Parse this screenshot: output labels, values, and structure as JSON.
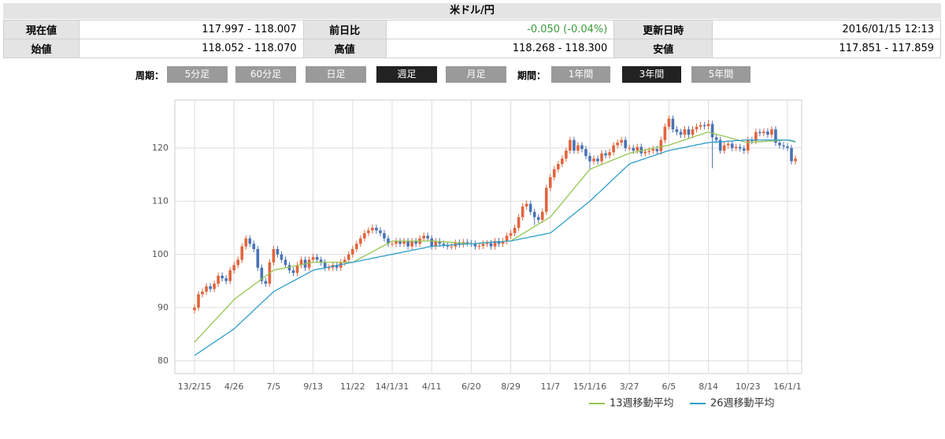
{
  "header": {
    "title": "米ドル/円"
  },
  "table": {
    "rows": [
      [
        "現在値",
        "117.997 - 118.007",
        "前日比",
        "-0.050 (-0.04%)",
        "更新日時",
        "2016/01/15 12:13"
      ],
      [
        "始値",
        "118.052 - 118.070",
        "高値",
        "118.268 - 118.300",
        "安値",
        "117.851 - 117.859"
      ]
    ]
  },
  "controls": {
    "period_label": "周期：",
    "periods": [
      {
        "label": "5分足",
        "active": false
      },
      {
        "label": "60分足",
        "active": false
      },
      {
        "label": "日足",
        "active": false
      },
      {
        "label": "週足",
        "active": true
      },
      {
        "label": "月足",
        "active": false
      }
    ],
    "term_label": "期間：",
    "terms": [
      {
        "label": "1年間",
        "active": false
      },
      {
        "label": "3年間",
        "active": true
      },
      {
        "label": "5年間",
        "active": false
      }
    ]
  },
  "chart_data": {
    "type": "candlestick",
    "up_color": "#e2643c",
    "down_color": "#4a72b4",
    "grid": true,
    "legend": "bottom-right",
    "ylim": [
      77.6,
      129
    ],
    "yticks": [
      80,
      90,
      100,
      110,
      120
    ],
    "categories": [
      "13/2/15",
      null,
      null,
      null,
      null,
      null,
      null,
      null,
      null,
      null,
      "4/26",
      null,
      null,
      null,
      null,
      null,
      null,
      null,
      null,
      null,
      "7/5",
      null,
      null,
      null,
      null,
      null,
      null,
      null,
      null,
      null,
      "9/13",
      null,
      null,
      null,
      null,
      null,
      null,
      null,
      null,
      null,
      "11/22",
      null,
      null,
      null,
      null,
      null,
      null,
      null,
      null,
      null,
      "14/1/31",
      null,
      null,
      null,
      null,
      null,
      null,
      null,
      null,
      null,
      "4/11",
      null,
      null,
      null,
      null,
      null,
      null,
      null,
      null,
      null,
      "6/20",
      null,
      null,
      null,
      null,
      null,
      null,
      null,
      null,
      null,
      "8/29",
      null,
      null,
      null,
      null,
      null,
      null,
      null,
      null,
      null,
      "11/7",
      null,
      null,
      null,
      null,
      null,
      null,
      null,
      null,
      null,
      "15/1/16",
      null,
      null,
      null,
      null,
      null,
      null,
      null,
      null,
      null,
      "3/27",
      null,
      null,
      null,
      null,
      null,
      null,
      null,
      null,
      null,
      "6/5",
      null,
      null,
      null,
      null,
      null,
      null,
      null,
      null,
      null,
      "8/14",
      null,
      null,
      null,
      null,
      null,
      null,
      null,
      null,
      null,
      "10/23",
      null,
      null,
      null,
      null,
      null,
      null,
      null,
      null,
      null,
      "16/1/1",
      null,
      null
    ],
    "candles": [
      [
        89.5,
        90.6,
        88.9,
        90
      ],
      [
        90,
        93.1,
        89.4,
        92.5
      ],
      [
        92.5,
        93.6,
        91.9,
        93
      ],
      [
        93,
        94.6,
        92.4,
        94
      ],
      [
        94,
        94.6,
        92.9,
        93.5
      ],
      [
        93.5,
        95.1,
        92.9,
        94.5
      ],
      [
        94.5,
        96.6,
        93.9,
        96
      ],
      [
        96,
        96.6,
        94.9,
        95.5
      ],
      [
        95.5,
        96.1,
        94.4,
        95
      ],
      [
        95,
        97.6,
        94.4,
        97
      ],
      [
        97,
        98.6,
        96.4,
        98
      ],
      [
        98,
        99.6,
        97.4,
        99
      ],
      [
        99,
        102.1,
        98.4,
        101.5
      ],
      [
        101.5,
        103.6,
        100.9,
        103
      ],
      [
        103,
        103.6,
        101.4,
        102
      ],
      [
        102,
        102.6,
        100.4,
        101
      ],
      [
        101,
        101.6,
        96.9,
        97.5
      ],
      [
        97.5,
        98.1,
        94.4,
        95
      ],
      [
        95,
        95.6,
        93.9,
        94.5
      ],
      [
        94.5,
        99.1,
        93.9,
        98.5
      ],
      [
        98.5,
        101.6,
        97.9,
        101
      ],
      [
        101,
        101.6,
        99.4,
        100
      ],
      [
        100,
        100.6,
        98.4,
        99
      ],
      [
        99,
        99.6,
        97.4,
        98
      ],
      [
        98,
        98.6,
        96.4,
        97
      ],
      [
        97,
        97.6,
        95.9,
        96.5
      ],
      [
        96.5,
        98.6,
        95.9,
        98
      ],
      [
        98,
        99.6,
        97.4,
        99
      ],
      [
        99,
        99.6,
        96.9,
        97.5
      ],
      [
        97.5,
        99.6,
        96.9,
        99
      ],
      [
        99,
        100.1,
        98.4,
        99.5
      ],
      [
        99.5,
        100.1,
        98.4,
        99
      ],
      [
        99,
        99.6,
        97.9,
        98.5
      ],
      [
        98.5,
        99.1,
        96.9,
        97.5
      ],
      [
        97.5,
        98.1,
        96.9,
        97.5
      ],
      [
        97.5,
        98.6,
        96.9,
        98
      ],
      [
        98,
        98.6,
        96.9,
        97.5
      ],
      [
        97.5,
        99.1,
        96.9,
        98.5
      ],
      [
        98.5,
        99.6,
        97.9,
        99
      ],
      [
        99,
        100.6,
        98.4,
        100
      ],
      [
        100,
        101.6,
        99.4,
        101
      ],
      [
        101,
        102.6,
        100.4,
        102
      ],
      [
        102,
        103.6,
        101.4,
        103
      ],
      [
        103,
        104.6,
        102.4,
        104
      ],
      [
        104,
        105.1,
        103.4,
        104.5
      ],
      [
        104.5,
        105.6,
        103.9,
        105
      ],
      [
        105,
        105.6,
        103.9,
        104.5
      ],
      [
        104.5,
        105.1,
        103.4,
        104
      ],
      [
        104,
        104.6,
        102.4,
        103
      ],
      [
        103,
        103.6,
        101.4,
        102
      ],
      [
        102,
        102.6,
        101.4,
        102
      ],
      [
        102,
        103.1,
        101.4,
        102.5
      ],
      [
        102.5,
        103.1,
        101.4,
        102
      ],
      [
        102,
        103.1,
        101.4,
        102.5
      ],
      [
        102.5,
        103.1,
        100.9,
        101.5
      ],
      [
        101.5,
        103.1,
        100.9,
        102.5
      ],
      [
        102.5,
        103.1,
        101.4,
        102
      ],
      [
        102,
        103.6,
        101.4,
        103
      ],
      [
        103,
        104.1,
        102.4,
        103.5
      ],
      [
        103.5,
        104.1,
        102.4,
        103
      ],
      [
        103,
        103.6,
        100.9,
        101.5
      ],
      [
        101.5,
        103.1,
        100.9,
        102.5
      ],
      [
        102.5,
        103.1,
        101.4,
        102
      ],
      [
        102,
        102.6,
        101.2,
        101.8
      ],
      [
        101.8,
        102.4,
        100.9,
        101.5
      ],
      [
        101.5,
        102.1,
        100.9,
        101.5
      ],
      [
        101.5,
        102.8,
        100.9,
        102.2
      ],
      [
        102.2,
        102.8,
        101.3,
        101.9
      ],
      [
        101.9,
        102.9,
        101.3,
        102.3
      ],
      [
        102.3,
        102.9,
        101.5,
        102.1
      ],
      [
        102.1,
        102.7,
        101.4,
        102
      ],
      [
        102,
        102.6,
        100.9,
        101.5
      ],
      [
        101.5,
        102.2,
        100.9,
        101.6
      ],
      [
        101.6,
        102.6,
        101,
        102
      ],
      [
        102,
        102.7,
        101.4,
        102.1
      ],
      [
        102.1,
        102.7,
        100.9,
        101.5
      ],
      [
        101.5,
        103.1,
        100.9,
        102.5
      ],
      [
        102.5,
        103.1,
        101.4,
        102
      ],
      [
        102,
        103.1,
        101.4,
        102.5
      ],
      [
        102.5,
        104.1,
        101.9,
        103.5
      ],
      [
        103.5,
        104.6,
        102.9,
        104
      ],
      [
        104,
        105.6,
        103.4,
        105
      ],
      [
        105,
        107.6,
        104.4,
        107
      ],
      [
        107,
        109.6,
        106.4,
        109
      ],
      [
        109,
        110.1,
        108.4,
        109.5
      ],
      [
        109.5,
        110.1,
        107.4,
        108
      ],
      [
        108,
        108.6,
        105.5,
        107
      ],
      [
        107,
        107.6,
        105.9,
        106.5
      ],
      [
        106.5,
        108.6,
        105.9,
        108
      ],
      [
        108,
        113.1,
        107.4,
        112.5
      ],
      [
        112.5,
        115.1,
        111.9,
        114.5
      ],
      [
        114.5,
        116.6,
        113.9,
        116
      ],
      [
        116,
        117.6,
        115.4,
        117
      ],
      [
        117,
        118.6,
        116.4,
        118
      ],
      [
        118,
        120.1,
        117.4,
        119.5
      ],
      [
        119.5,
        122.1,
        118.9,
        121.5
      ],
      [
        121.5,
        122.1,
        118.9,
        119.5
      ],
      [
        119.5,
        121.1,
        118.9,
        120.5
      ],
      [
        120.5,
        121.1,
        119.2,
        119.8
      ],
      [
        119.8,
        120.4,
        117.9,
        118.5
      ],
      [
        118.5,
        119.1,
        115.9,
        117.5
      ],
      [
        117.5,
        118.6,
        116.9,
        118
      ],
      [
        118,
        118.6,
        116.9,
        117.5
      ],
      [
        117.5,
        119.6,
        116.9,
        119
      ],
      [
        119,
        119.6,
        118,
        118.6
      ],
      [
        118.6,
        119.8,
        118,
        119.2
      ],
      [
        119.2,
        121.1,
        118.6,
        120.5
      ],
      [
        120.5,
        121.6,
        119.9,
        121
      ],
      [
        121,
        122.1,
        120.4,
        121.5
      ],
      [
        121.5,
        122.1,
        119.4,
        120
      ],
      [
        120,
        120.6,
        119.4,
        120
      ],
      [
        120,
        120.6,
        118.9,
        119.5
      ],
      [
        119.5,
        120.8,
        118.9,
        120.2
      ],
      [
        120.2,
        120.8,
        118.4,
        119
      ],
      [
        119,
        119.9,
        118.4,
        119.3
      ],
      [
        119.3,
        120.1,
        118.7,
        119.5
      ],
      [
        119.5,
        120.4,
        118.9,
        119.8
      ],
      [
        119.8,
        120.4,
        118.8,
        119.4
      ],
      [
        119.4,
        122.1,
        118.8,
        121.5
      ],
      [
        121.5,
        124.6,
        120.9,
        124
      ],
      [
        124,
        126.1,
        123.4,
        125.5
      ],
      [
        125.5,
        126.1,
        122.9,
        123.5
      ],
      [
        123.5,
        124.1,
        122.4,
        123
      ],
      [
        123,
        123.6,
        121.9,
        122.5
      ],
      [
        122.5,
        124.1,
        121.9,
        123.5
      ],
      [
        123.5,
        124.1,
        121.9,
        122.5
      ],
      [
        122.5,
        124.1,
        121.9,
        123.5
      ],
      [
        123.5,
        124.6,
        122.9,
        124
      ],
      [
        124,
        124.9,
        123.4,
        124.3
      ],
      [
        124.3,
        124.9,
        123.5,
        124.1
      ],
      [
        124.1,
        125.3,
        123.5,
        124.5
      ],
      [
        124.5,
        125.1,
        116.2,
        122
      ],
      [
        122,
        122.6,
        120.9,
        121.5
      ],
      [
        121.5,
        122.1,
        118.9,
        119.5
      ],
      [
        119.5,
        121.1,
        118.9,
        120.5
      ],
      [
        120.5,
        121.4,
        119.9,
        120.8
      ],
      [
        120.8,
        121.4,
        119.4,
        120
      ],
      [
        120,
        120.8,
        119.4,
        120.2
      ],
      [
        120.2,
        120.8,
        119.3,
        119.9
      ],
      [
        119.9,
        120.5,
        118.9,
        119.5
      ],
      [
        119.5,
        122.1,
        118.9,
        121.5
      ],
      [
        121.5,
        122.1,
        120.7,
        121.3
      ],
      [
        121.3,
        123.6,
        120.7,
        123
      ],
      [
        123,
        123.6,
        122.2,
        122.8
      ],
      [
        122.8,
        123.7,
        122.2,
        123.1
      ],
      [
        123.1,
        123.7,
        121.9,
        122.5
      ],
      [
        122.5,
        124.1,
        121.9,
        123.5
      ],
      [
        123.5,
        124.1,
        120.4,
        121
      ],
      [
        121,
        121.6,
        119.9,
        120.5
      ],
      [
        120.5,
        121.1,
        119.7,
        120.3
      ],
      [
        120.3,
        120.9,
        119.4,
        120
      ],
      [
        120,
        120.6,
        116.9,
        117.5
      ],
      [
        117.5,
        118.6,
        116.9,
        118
      ]
    ],
    "series": [
      {
        "name": "13週移動平均",
        "color": "#95c653",
        "values": [
          83.5,
          84.3,
          85.1,
          85.9,
          86.7,
          87.5,
          88.3,
          89.1,
          89.9,
          90.7,
          91.5,
          92.1,
          92.6,
          93.2,
          93.7,
          94.3,
          94.8,
          95.4,
          95.9,
          96.5,
          97,
          97.2,
          97.3,
          97.5,
          97.6,
          97.8,
          97.9,
          98.1,
          98.2,
          98.4,
          98.5,
          98.5,
          98.5,
          98.5,
          98.5,
          98.5,
          98.5,
          98.5,
          98.5,
          98.5,
          98.5,
          98.9,
          99.3,
          99.7,
          100.1,
          100.5,
          100.9,
          101.3,
          101.7,
          102.1,
          102.5,
          102.5,
          102.5,
          102.5,
          102.5,
          102.5,
          102.5,
          102.5,
          102.5,
          102.5,
          102.5,
          102.5,
          102.4,
          102.4,
          102.3,
          102.3,
          102.2,
          102.2,
          102.1,
          102.1,
          102,
          102,
          102.1,
          102.2,
          102.2,
          102.3,
          102.3,
          102.4,
          102.4,
          102.5,
          102.5,
          103,
          103.4,
          103.9,
          104.3,
          104.8,
          105.2,
          105.7,
          106.1,
          106.6,
          107,
          107.9,
          108.8,
          109.7,
          110.6,
          111.5,
          112.4,
          113.3,
          114.2,
          115.1,
          116,
          116.3,
          116.6,
          116.9,
          117.2,
          117.5,
          117.8,
          118.1,
          118.4,
          118.7,
          119,
          119.2,
          119.3,
          119.5,
          119.6,
          119.8,
          119.9,
          120.1,
          120.2,
          120.4,
          120.5,
          120.8,
          121,
          121.3,
          121.5,
          121.8,
          122,
          122.3,
          122.5,
          122.8,
          123,
          122.8,
          122.6,
          122.4,
          122.2,
          122,
          121.8,
          121.6,
          121.4,
          121.2,
          121,
          121.1,
          121.1,
          121.2,
          121.2,
          121.3,
          121.3,
          121.4,
          121.4,
          121.5,
          121.5,
          121.3,
          121.1
        ]
      },
      {
        "name": "26週移動平均",
        "color": "#2e9ecb",
        "values": [
          81,
          81.5,
          82,
          82.5,
          83,
          83.5,
          84,
          84.5,
          85,
          85.5,
          86,
          86.7,
          87.4,
          88.1,
          88.8,
          89.5,
          90.2,
          90.9,
          91.6,
          92.3,
          93,
          93.4,
          93.8,
          94.2,
          94.6,
          95,
          95.4,
          95.8,
          96.2,
          96.6,
          97,
          97.2,
          97.3,
          97.5,
          97.6,
          97.8,
          97.9,
          98.1,
          98.2,
          98.4,
          98.5,
          98.7,
          98.8,
          99,
          99.1,
          99.3,
          99.4,
          99.6,
          99.7,
          99.9,
          100,
          100.2,
          100.3,
          100.5,
          100.6,
          100.8,
          100.9,
          101.1,
          101.2,
          101.4,
          101.5,
          101.6,
          101.6,
          101.7,
          101.7,
          101.8,
          101.8,
          101.9,
          101.9,
          102,
          102,
          102,
          102.1,
          102.2,
          102.2,
          102.3,
          102.3,
          102.4,
          102.4,
          102.5,
          102.5,
          102.7,
          102.8,
          103,
          103.1,
          103.3,
          103.4,
          103.6,
          103.7,
          103.9,
          104,
          104.6,
          105.2,
          105.8,
          106.4,
          107,
          107.6,
          108.2,
          108.8,
          109.4,
          110,
          110.7,
          111.4,
          112.1,
          112.8,
          113.5,
          114.2,
          114.9,
          115.6,
          116.3,
          117,
          117.3,
          117.5,
          117.8,
          118,
          118.3,
          118.5,
          118.8,
          119,
          119.3,
          119.5,
          119.7,
          119.8,
          120,
          120.1,
          120.3,
          120.4,
          120.6,
          120.7,
          120.9,
          121,
          121.1,
          121.1,
          121.2,
          121.2,
          121.3,
          121.3,
          121.4,
          121.4,
          121.5,
          121.5,
          121.5,
          121.5,
          121.5,
          121.5,
          121.5,
          121.5,
          121.5,
          121.5,
          121.5,
          121.5,
          121.4,
          121.2
        ]
      }
    ]
  }
}
